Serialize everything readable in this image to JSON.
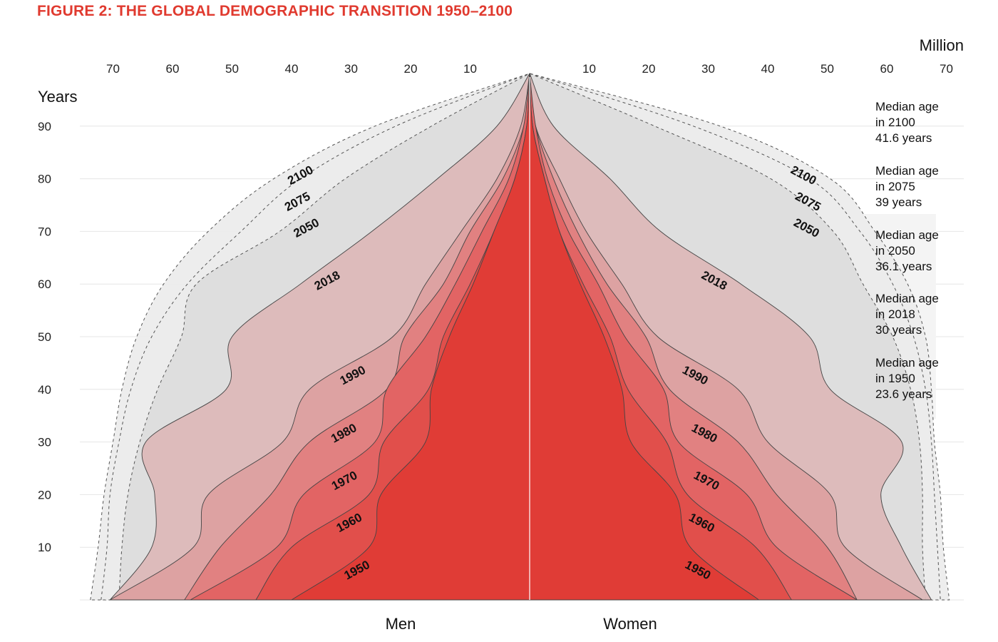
{
  "figure": {
    "title": "FIGURE 2: THE GLOBAL DEMOGRAPHIC TRANSITION 1950–2100"
  },
  "chart_data": {
    "type": "area",
    "subtype": "population-pyramid",
    "x_unit_label": "Million",
    "y_axis_label": "Years",
    "x_ticks_left": [
      70,
      60,
      50,
      40,
      30,
      20,
      10
    ],
    "x_ticks_right": [
      10,
      20,
      30,
      40,
      50,
      60,
      70
    ],
    "y_ticks": [
      90,
      80,
      70,
      60,
      50,
      40,
      30,
      20,
      10
    ],
    "xlim": [
      0,
      72
    ],
    "ylim": [
      0,
      91
    ],
    "side_labels": {
      "left": "Men",
      "right": "Women"
    },
    "series": [
      {
        "name": "2100",
        "style": "dashed",
        "fill": "#ececec",
        "ages": [
          0,
          10,
          20,
          30,
          40,
          50,
          60,
          70,
          80,
          90,
          100
        ],
        "men": [
          73.8,
          72.5,
          71.5,
          70.0,
          68.5,
          66.0,
          61.5,
          54.0,
          43.0,
          26.0,
          0
        ],
        "women": [
          70.5,
          69.5,
          69.0,
          68.0,
          67.5,
          66.5,
          63.5,
          58.0,
          50.5,
          32.0,
          0
        ]
      },
      {
        "name": "2075",
        "style": "dashed",
        "fill": "#ececec",
        "ages": [
          0,
          10,
          20,
          30,
          40,
          50,
          60,
          70,
          80,
          90,
          100
        ],
        "men": [
          72.0,
          71.0,
          70.5,
          69.0,
          67.0,
          63.5,
          57.5,
          48.5,
          38.5,
          22.5,
          0
        ],
        "women": [
          69.0,
          68.5,
          68.0,
          67.5,
          66.5,
          64.5,
          61.0,
          55.5,
          47.0,
          27.5,
          0
        ]
      },
      {
        "name": "2050",
        "style": "dashed",
        "fill": "#dddddd",
        "ages": [
          0,
          10,
          20,
          30,
          40,
          50,
          60,
          70,
          80,
          90,
          100
        ],
        "men": [
          69.0,
          68.5,
          67.5,
          65.5,
          62.5,
          58.5,
          56.0,
          42.0,
          31.0,
          16.5,
          0
        ],
        "women": [
          66.5,
          66.0,
          66.0,
          65.5,
          64.0,
          61.0,
          56.0,
          51.0,
          40.5,
          21.0,
          0
        ]
      },
      {
        "name": "2018",
        "style": "solid",
        "fill": "#dcb8b8",
        "ages": [
          0,
          10,
          20,
          30,
          40,
          50,
          60,
          70,
          80,
          90,
          100
        ],
        "men": [
          70.5,
          63.5,
          63.0,
          64.5,
          51.0,
          50.0,
          38.5,
          26.5,
          15.5,
          5.5,
          0
        ],
        "women": [
          67.5,
          62.5,
          59.0,
          62.5,
          50.5,
          47.0,
          35.5,
          22.0,
          13.5,
          4.0,
          0
        ]
      },
      {
        "name": "1990",
        "style": "solid",
        "fill": "#dca0a0",
        "ages": [
          0,
          10,
          20,
          30,
          40,
          50,
          60,
          70,
          80,
          90,
          100
        ],
        "men": [
          70.5,
          56.5,
          54.0,
          41.5,
          37.0,
          23.0,
          17.5,
          11.5,
          5.5,
          1.5,
          0
        ],
        "women": [
          66.0,
          53.0,
          50.5,
          40.0,
          35.0,
          21.5,
          15.5,
          9.5,
          5.0,
          1.0,
          0
        ]
      },
      {
        "name": "1980",
        "style": "solid",
        "fill": "#e08080",
        "ages": [
          0,
          10,
          20,
          30,
          40,
          50,
          60,
          70,
          80,
          90,
          100
        ],
        "men": [
          58.0,
          52.0,
          43.5,
          37.0,
          24.0,
          21.0,
          14.5,
          10.0,
          4.5,
          1.0,
          0
        ],
        "women": [
          55.0,
          50.0,
          41.5,
          35.0,
          23.5,
          19.5,
          13.0,
          8.0,
          4.0,
          1.0,
          0
        ]
      },
      {
        "name": "1970",
        "style": "solid",
        "fill": "#e26262",
        "ages": [
          0,
          10,
          20,
          30,
          40,
          50,
          60,
          70,
          80,
          90,
          100
        ],
        "men": [
          57.0,
          42.5,
          38.0,
          26.0,
          24.0,
          17.5,
          12.5,
          8.0,
          3.5,
          1.0,
          0
        ],
        "women": [
          55.0,
          41.5,
          36.5,
          25.0,
          22.5,
          16.0,
          11.5,
          6.5,
          3.0,
          1.0,
          0
        ]
      },
      {
        "name": "1960",
        "style": "solid",
        "fill": "#e04e4a",
        "ages": [
          0,
          10,
          20,
          30,
          40,
          50,
          60,
          70,
          80,
          90,
          100
        ],
        "men": [
          46.0,
          40.0,
          27.0,
          24.5,
          17.0,
          14.5,
          10.0,
          6.0,
          2.5,
          0.5,
          0
        ],
        "women": [
          44.0,
          38.0,
          26.5,
          23.0,
          16.5,
          13.5,
          9.0,
          5.0,
          2.5,
          0.5,
          0
        ]
      },
      {
        "name": "1950",
        "style": "solid",
        "fill": "#df3b35",
        "ages": [
          0,
          10,
          20,
          30,
          40,
          50,
          60,
          70,
          80,
          90,
          100
        ],
        "men": [
          40.0,
          27.0,
          25.0,
          17.5,
          16.5,
          13.5,
          9.5,
          6.0,
          2.5,
          0.5,
          0
        ],
        "women": [
          38.5,
          27.0,
          24.5,
          17.0,
          15.5,
          12.5,
          8.5,
          5.0,
          2.5,
          0.5,
          0
        ]
      }
    ],
    "median_age": [
      {
        "line1": "Median age",
        "line2": "in 2100",
        "line3": "41.6 years"
      },
      {
        "line1": "Median age",
        "line2": "in 2075",
        "line3": "39 years"
      },
      {
        "line1": "Median age",
        "line2": "in 2050",
        "line3": "36.1 years"
      },
      {
        "line1": "Median age",
        "line2": "in 2018",
        "line3": "30 years"
      },
      {
        "line1": "Median age",
        "line2": "in 1950",
        "line3": "23.6 years"
      }
    ],
    "grid": true,
    "grid_color": "#e6e6e6"
  }
}
